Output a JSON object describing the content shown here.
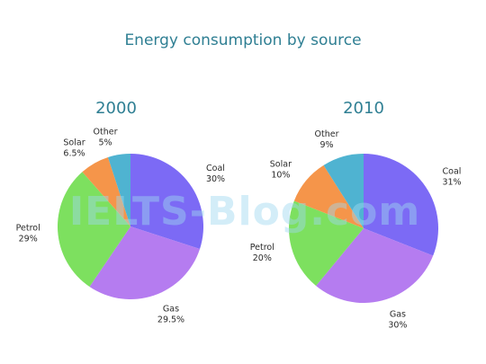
{
  "chart_data": {
    "type": "pie",
    "title": "Energy consumption by source",
    "watermark": "IELTS-Blog.com",
    "colors": {
      "Coal": "#7c6af5",
      "Gas": "#b57cf0",
      "Petrol": "#7de05f",
      "Solar": "#f5954a",
      "Other": "#4fb3d1"
    },
    "charts": [
      {
        "year": "2000",
        "slices": [
          {
            "name": "Coal",
            "value": 30,
            "label": "30%"
          },
          {
            "name": "Gas",
            "value": 29.5,
            "label": "29.5%"
          },
          {
            "name": "Petrol",
            "value": 29,
            "label": "29%"
          },
          {
            "name": "Solar",
            "value": 6.5,
            "label": "6.5%"
          },
          {
            "name": "Other",
            "value": 5,
            "label": "5%"
          }
        ]
      },
      {
        "year": "2010",
        "slices": [
          {
            "name": "Coal",
            "value": 31,
            "label": "31%"
          },
          {
            "name": "Gas",
            "value": 30,
            "label": "30%"
          },
          {
            "name": "Petrol",
            "value": 20,
            "label": "20%"
          },
          {
            "name": "Solar",
            "value": 10,
            "label": "10%"
          },
          {
            "name": "Other",
            "value": 9,
            "label": "9%"
          }
        ]
      }
    ]
  }
}
